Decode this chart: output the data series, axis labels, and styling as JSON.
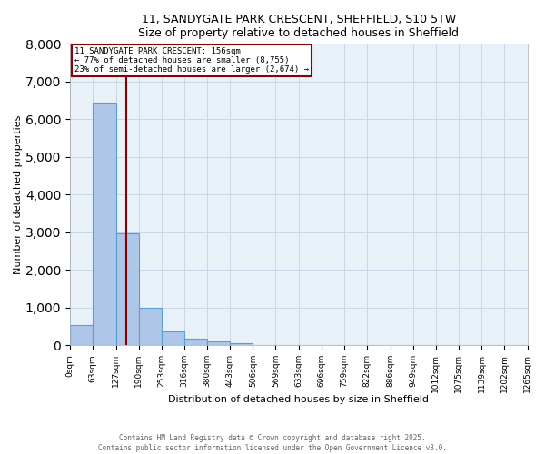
{
  "title_line1": "11, SANDYGATE PARK CRESCENT, SHEFFIELD, S10 5TW",
  "title_line2": "Size of property relative to detached houses in Sheffield",
  "xlabel": "Distribution of detached houses by size in Sheffield",
  "ylabel": "Number of detached properties",
  "annotation_line1": "11 SANDYGATE PARK CRESCENT: 156sqm",
  "annotation_line2": "← 77% of detached houses are smaller (8,755)",
  "annotation_line3": "23% of semi-detached houses are larger (2,674) →",
  "bar_edges": [
    0,
    63,
    127,
    190,
    253,
    316,
    380,
    443,
    506,
    569,
    633,
    696,
    759,
    822,
    886,
    949,
    1012,
    1075,
    1139,
    1202,
    1265
  ],
  "bar_heights": [
    550,
    6450,
    2980,
    1000,
    360,
    175,
    100,
    60,
    0,
    0,
    0,
    0,
    0,
    0,
    0,
    0,
    0,
    0,
    0,
    0
  ],
  "bar_color": "#aec6e8",
  "bar_edge_color": "#5a9fd4",
  "vline_x": 156,
  "vline_color": "#8b0000",
  "annotation_box_color": "#8b0000",
  "annotation_fill": "white",
  "ylim": [
    0,
    8000
  ],
  "yticks": [
    0,
    1000,
    2000,
    3000,
    4000,
    5000,
    6000,
    7000,
    8000
  ],
  "grid_color": "#c8d8e8",
  "bg_color": "#e8f0f8",
  "footer_line1": "Contains HM Land Registry data © Crown copyright and database right 2025.",
  "footer_line2": "Contains public sector information licensed under the Open Government Licence v3.0."
}
